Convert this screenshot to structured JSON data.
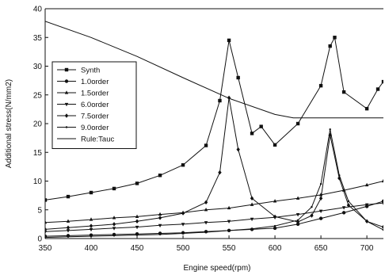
{
  "chart_data": {
    "type": "line",
    "title": "",
    "xlabel": "Engine speed(rpm)",
    "ylabel": "Additional stress(N/mm2)",
    "xlim": [
      350,
      718
    ],
    "ylim": [
      0,
      40
    ],
    "xticks": [
      350,
      400,
      450,
      500,
      550,
      600,
      650,
      700
    ],
    "yticks": [
      0,
      5,
      10,
      15,
      20,
      25,
      30,
      35,
      40
    ],
    "grid": false,
    "legend_position": "left",
    "series": [
      {
        "name": "Synth",
        "marker": "square",
        "x": [
          350,
          375,
          400,
          425,
          450,
          475,
          500,
          525,
          540,
          550,
          560,
          575,
          585,
          600,
          625,
          650,
          660,
          665,
          675,
          700,
          712,
          718
        ],
        "y": [
          6.7,
          7.3,
          8.0,
          8.7,
          9.6,
          11.0,
          12.8,
          16.2,
          24.0,
          34.5,
          28.0,
          18.3,
          19.5,
          16.3,
          20.0,
          26.6,
          33.5,
          35.0,
          25.5,
          22.6,
          26.0,
          27.3
        ]
      },
      {
        "name": "1.0order",
        "marker": "circle",
        "x": [
          350,
          375,
          400,
          425,
          450,
          475,
          500,
          525,
          550,
          575,
          600,
          625,
          650,
          675,
          700,
          718
        ],
        "y": [
          0.4,
          0.5,
          0.6,
          0.7,
          0.8,
          0.9,
          1.0,
          1.2,
          1.4,
          1.6,
          1.8,
          2.5,
          3.5,
          4.5,
          5.6,
          6.5
        ]
      },
      {
        "name": "1.5order",
        "marker": "triangle-up",
        "x": [
          350,
          375,
          400,
          425,
          450,
          475,
          500,
          525,
          550,
          575,
          600,
          625,
          650,
          675,
          700,
          718
        ],
        "y": [
          2.8,
          3.0,
          3.3,
          3.6,
          3.8,
          4.2,
          4.5,
          5.0,
          5.3,
          5.9,
          6.5,
          7.0,
          7.6,
          8.4,
          9.3,
          10.0
        ]
      },
      {
        "name": "6.0order",
        "marker": "triangle-down",
        "x": [
          350,
          375,
          400,
          425,
          450,
          475,
          500,
          525,
          550,
          575,
          600,
          625,
          650,
          675,
          700,
          718
        ],
        "y": [
          1.2,
          1.4,
          1.6,
          1.8,
          2.0,
          2.3,
          2.5,
          2.8,
          3.0,
          3.4,
          3.7,
          4.2,
          4.8,
          5.4,
          5.9,
          6.2
        ]
      },
      {
        "name": "7.5order",
        "marker": "diamond",
        "x": [
          350,
          375,
          400,
          425,
          450,
          475,
          500,
          525,
          540,
          550,
          560,
          575,
          600,
          625,
          640,
          650,
          660,
          670,
          680,
          700,
          718
        ],
        "y": [
          1.6,
          1.9,
          2.2,
          2.5,
          3.0,
          3.6,
          4.4,
          6.3,
          11.5,
          24.5,
          15.5,
          7.0,
          3.8,
          2.9,
          4.0,
          7.0,
          18.0,
          10.5,
          5.8,
          3.0,
          2.0
        ]
      },
      {
        "name": "9.0order",
        "marker": "dot",
        "x": [
          350,
          375,
          400,
          425,
          450,
          475,
          500,
          525,
          550,
          575,
          600,
          625,
          640,
          650,
          660,
          670,
          680,
          700,
          718
        ],
        "y": [
          0.2,
          0.3,
          0.4,
          0.5,
          0.6,
          0.7,
          0.9,
          1.1,
          1.4,
          1.7,
          2.2,
          3.2,
          5.5,
          9.5,
          19.0,
          11.0,
          6.5,
          3.0,
          1.5
        ]
      },
      {
        "name": "Rule:Tauc",
        "marker": "none",
        "x": [
          350,
          400,
          450,
          500,
          550,
          600,
          620,
          718
        ],
        "y": [
          37.8,
          35.0,
          31.7,
          28.0,
          24.4,
          21.6,
          21.0,
          21.0
        ]
      }
    ]
  }
}
